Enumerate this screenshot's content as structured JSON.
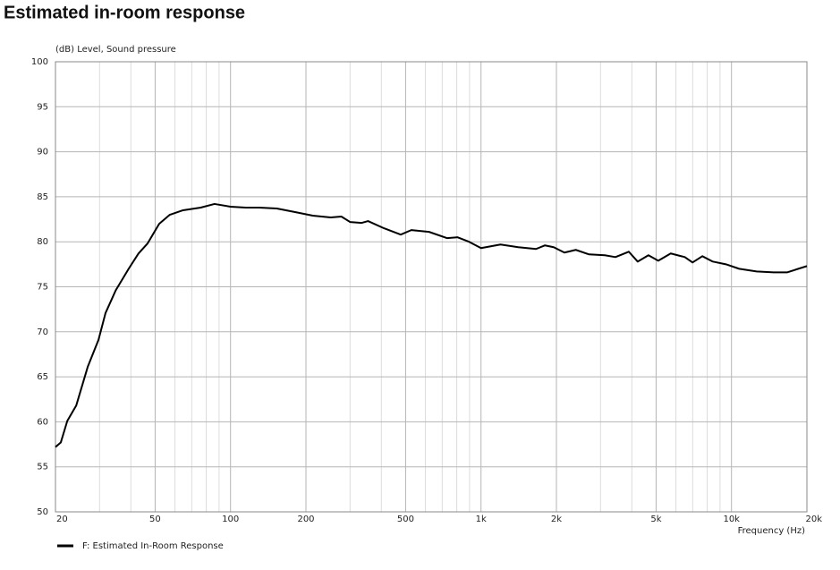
{
  "chart_data": {
    "type": "line",
    "title": "Estimated in-room response",
    "y_label": "(dB)  Level, Sound pressure",
    "x_label": "Frequency  (Hz)",
    "xscale": "log",
    "xlim": [
      20,
      20000
    ],
    "ylim": [
      50,
      100
    ],
    "xticks": [
      20,
      50,
      100,
      200,
      500,
      {
        "value": 1000,
        "label": "1k"
      },
      {
        "value": 2000,
        "label": "2k"
      },
      {
        "value": 5000,
        "label": "5k"
      },
      {
        "value": 10000,
        "label": "10k"
      },
      {
        "value": 20000,
        "label": "20k"
      }
    ],
    "xminorticks": [
      30,
      40,
      60,
      70,
      80,
      90,
      300,
      400,
      600,
      700,
      800,
      900,
      3000,
      4000,
      6000,
      7000,
      8000,
      9000
    ],
    "yticks": [
      50,
      55,
      60,
      65,
      70,
      75,
      80,
      85,
      90,
      95,
      100
    ],
    "grid": true,
    "series": [
      {
        "name": "F: Estimated In-Room Response",
        "color": "#000000",
        "x": [
          20,
          21,
          22.3,
          24.2,
          26.9,
          29.7,
          31.7,
          34.8,
          39.2,
          42.9,
          46.6,
          51.9,
          57.2,
          64.6,
          76,
          86.3,
          100,
          115,
          130,
          153,
          181,
          213,
          251,
          277,
          300,
          334,
          354,
          410,
          478,
          527,
          620,
          733,
          806,
          896,
          1000,
          1196,
          1408,
          1658,
          1800,
          1950,
          2152,
          2390,
          2700,
          3120,
          3440,
          3890,
          4220,
          4660,
          5100,
          5720,
          6510,
          6990,
          7650,
          8420,
          9500,
          10730,
          12600,
          14730,
          16660,
          20000
        ],
        "values": [
          57.2,
          57.7,
          60.1,
          61.8,
          66.1,
          69.1,
          72.1,
          74.6,
          77.0,
          78.7,
          79.8,
          82.0,
          83.0,
          83.5,
          83.8,
          84.2,
          83.9,
          83.8,
          83.8,
          83.7,
          83.3,
          82.9,
          82.7,
          82.8,
          82.2,
          82.1,
          82.3,
          81.5,
          80.8,
          81.3,
          81.1,
          80.4,
          80.5,
          80.0,
          79.3,
          79.7,
          79.4,
          79.2,
          79.6,
          79.4,
          78.8,
          79.1,
          78.6,
          78.5,
          78.3,
          78.9,
          77.8,
          78.5,
          77.9,
          78.7,
          78.3,
          77.7,
          78.4,
          77.8,
          77.5,
          77.0,
          76.7,
          76.6,
          76.6,
          77.3
        ]
      }
    ]
  }
}
